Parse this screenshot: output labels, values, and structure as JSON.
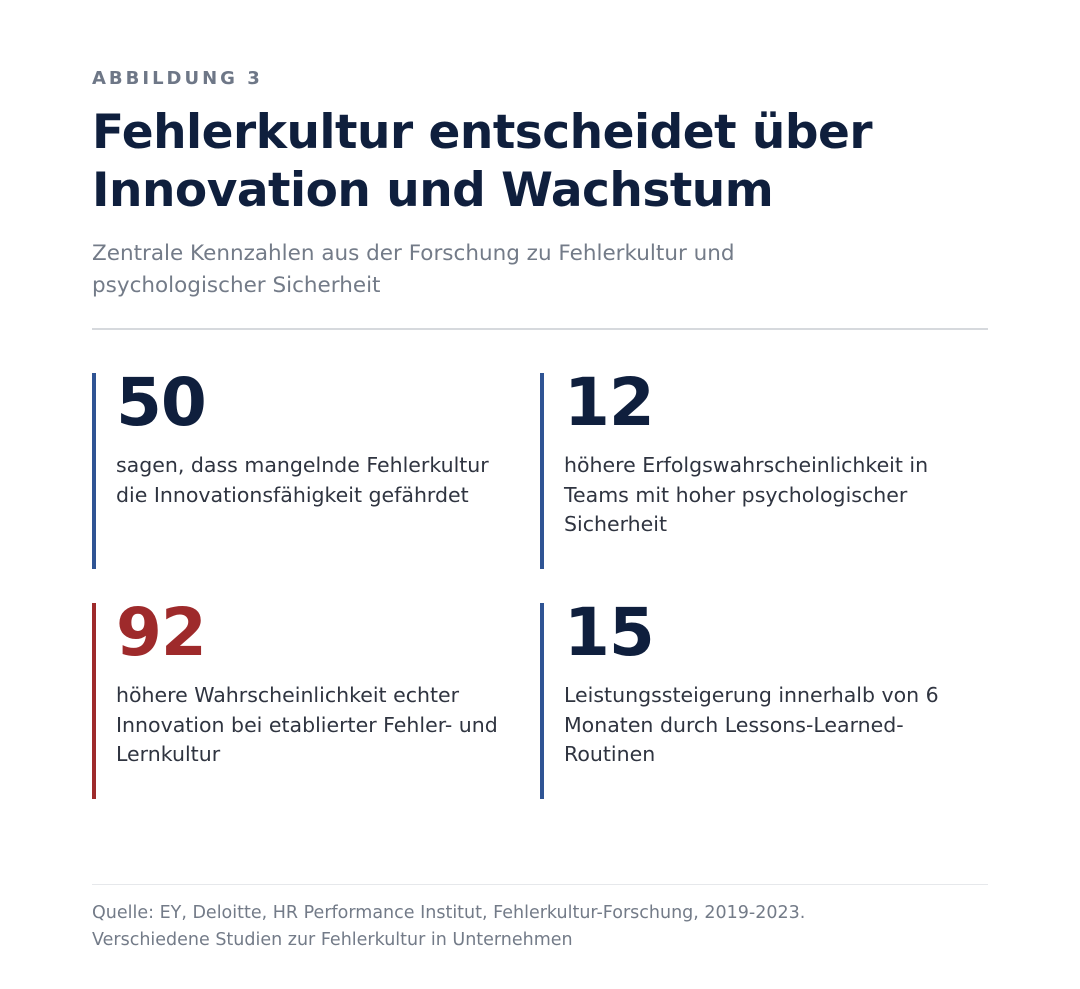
{
  "figure": {
    "eyebrow": "ABBILDUNG 3",
    "title": "Fehlerkultur entscheidet über Innovation und Wachstum",
    "subtitle": "Zentrale Kennzahlen aus der Forschung zu Fehlerkultur und psychologischer Sicherheit"
  },
  "stats": [
    {
      "value": "50",
      "description": "sagen, dass mangelnde Fehlerkultur die Innovationsfähigkeit gefährdet",
      "accent": "#2f5494"
    },
    {
      "value": "12",
      "description": "höhere Erfolgswahrscheinlichkeit in Teams mit hoher psychologischer Sicherheit",
      "accent": "#2f5494"
    },
    {
      "value": "92",
      "description": "höhere Wahrscheinlichkeit echter Innovation bei etablierter Fehler- und Lernkultur",
      "accent": "#9e2a2b"
    },
    {
      "value": "15",
      "description": "Leistungssteigerung innerhalb von 6 Monaten durch Lessons-Learned-Routinen",
      "accent": "#2f5494"
    }
  ],
  "source": {
    "line1": "Quelle: EY, Deloitte, HR Performance Institut, Fehlerkultur-Forschung, 2019-2023.",
    "line2": "Verschiedene Studien zur Fehlerkultur in Unternehmen"
  },
  "colors": {
    "navy": "#0f1f3d",
    "accent_blue": "#2f5494",
    "accent_red": "#9e2a2b",
    "muted_text": "#737b88"
  }
}
